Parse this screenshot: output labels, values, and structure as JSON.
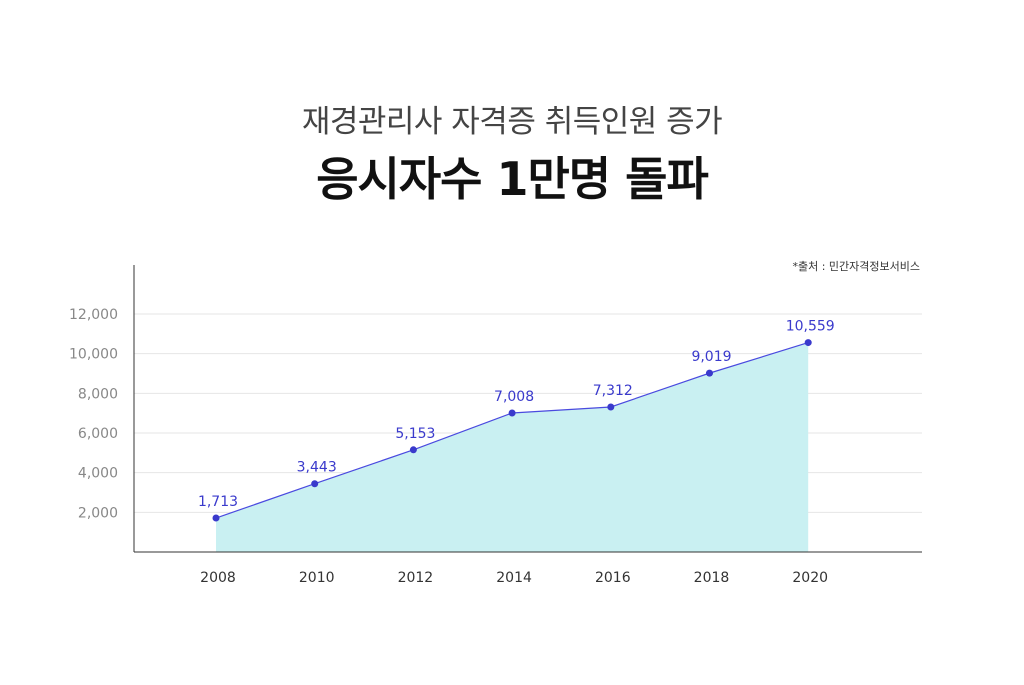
{
  "header": {
    "subtitle": "재경관리사 자격증 취득인원 증가",
    "title": "응시자수 1만명 돌파"
  },
  "source_note": "*출처 : 민간자격정보서비스",
  "colors": {
    "line": "#4a4adf",
    "point": "#3a3acc",
    "area": "#c9f0f2",
    "grid": "#e6e6e6",
    "axis": "#333333"
  },
  "chart_data": {
    "type": "area",
    "title": "",
    "xlabel": "",
    "ylabel": "",
    "x": [
      "2008",
      "2010",
      "2012",
      "2014",
      "2016",
      "2018",
      "2020"
    ],
    "values": [
      1713,
      3443,
      5153,
      7008,
      7312,
      9019,
      10559
    ],
    "value_labels": [
      "1,713",
      "3,443",
      "5,153",
      "7,008",
      "7,312",
      "9,019",
      "10,559"
    ],
    "y_ticks": [
      2000,
      4000,
      6000,
      8000,
      10000,
      12000
    ],
    "y_tick_labels": [
      "2,000",
      "4,000",
      "6,000",
      "8,000",
      "10,000",
      "12,000"
    ],
    "ylim": [
      0,
      12000
    ],
    "grid": true,
    "legend": "none"
  }
}
